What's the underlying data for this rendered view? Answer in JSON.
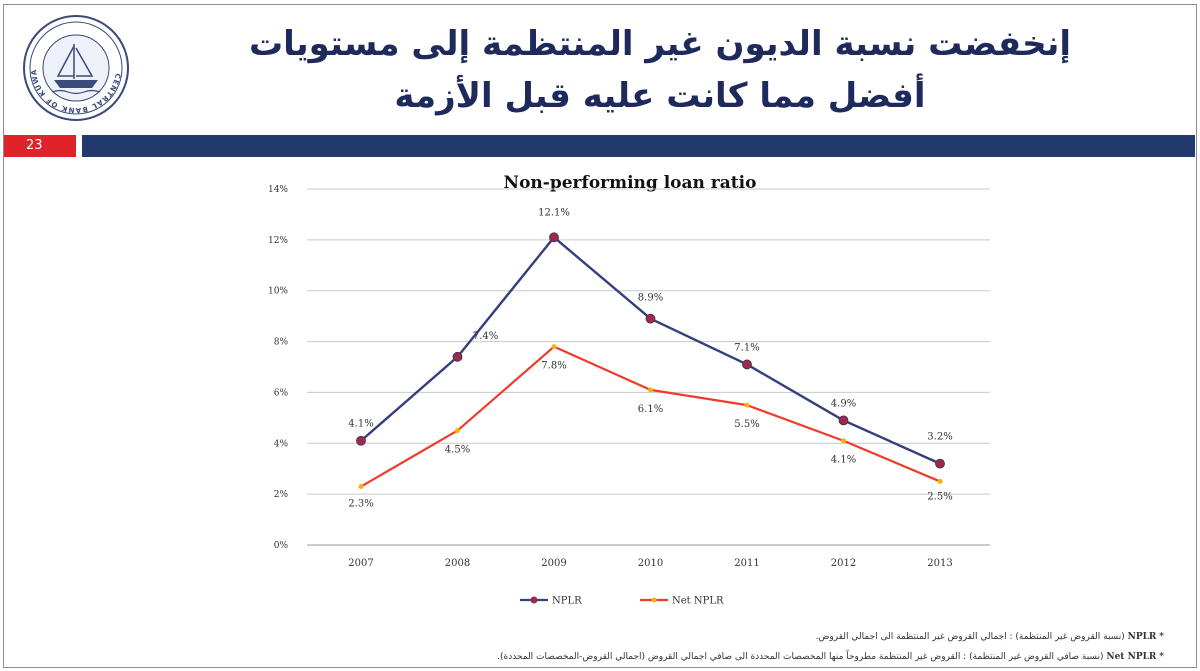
{
  "slide": {
    "title_line1": "إنخفضت نسبة الديون غير المنتظمة إلى مستويات",
    "title_line2": "أفضل مما كانت عليه قبل الأزمة",
    "page_number": "23",
    "logo_text": "CENTRAL BANK OF KUWAIT"
  },
  "colors": {
    "nplr": "#34407e",
    "net_nplr": "#ef3b2c",
    "nplr_marker": "#9b2b4a",
    "net_marker": "#f5b400",
    "header_blue": "#233a6e",
    "header_red": "#e0222b"
  },
  "chart_data": {
    "type": "line",
    "title": "Non-performing loan ratio",
    "categories": [
      "2007",
      "2008",
      "2009",
      "2010",
      "2011",
      "2012",
      "2013"
    ],
    "y_ticks": [
      "0%",
      "2%",
      "4%",
      "6%",
      "8%",
      "10%",
      "12%",
      "14%"
    ],
    "ylim": [
      0,
      14
    ],
    "grid": true,
    "legend_position": "bottom",
    "series": [
      {
        "name": "NPLR",
        "values": [
          4.1,
          7.4,
          12.1,
          8.9,
          7.1,
          4.9,
          3.2
        ],
        "labels": [
          "4.1%",
          "7.4%",
          "12.1%",
          "8.9%",
          "7.1%",
          "4.9%",
          "3.2%"
        ]
      },
      {
        "name": "Net NPLR",
        "values": [
          2.3,
          4.5,
          7.8,
          6.1,
          5.5,
          4.1,
          2.5
        ],
        "labels": [
          "2.3%",
          "4.5%",
          "7.8%",
          "6.1%",
          "5.5%",
          "4.1%",
          "2.5%"
        ]
      }
    ]
  },
  "footnotes": {
    "nplr_label": "NPLR",
    "nplr_text": "(نسبة القروض غير المنتظمة) : اجمالي القروض غير المنتظمة الى اجمالي القروض.",
    "net_label": "Net NPLR",
    "net_text": "(نسبة صافي القروض غير المنتظمة) : القروض غير المنتظمة مطروحاً منها المخصصات المحددة الى صافي اجمالي القروض (اجمالي القروض-المخصصات المحددة)."
  }
}
